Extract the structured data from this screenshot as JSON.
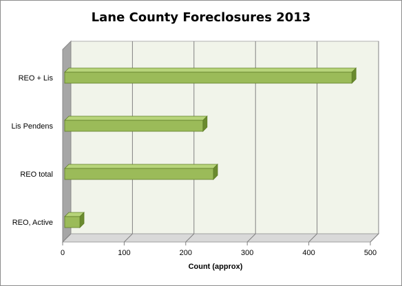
{
  "chart_data": {
    "type": "bar",
    "orientation": "horizontal",
    "title": "Lane County Foreclosures 2013",
    "xlabel": "Count (approx)",
    "ylabel": "",
    "categories": [
      "REO + Lis",
      "Lis Pendens",
      "REO total",
      "REO, Active"
    ],
    "values": [
      470,
      228,
      245,
      28
    ],
    "xlim": [
      0,
      500
    ],
    "xticks": [
      "0",
      "100",
      "200",
      "300",
      "400",
      "500"
    ],
    "grid": true,
    "legend": "none",
    "colors": {
      "bar_front": "#9bbb59",
      "bar_top": "#b7d47a",
      "bar_side": "#6a8a2f",
      "bar_edge": "#5f7d27",
      "plot_back": "#f1f4ea",
      "side_wall": "#a6a6a6",
      "floor": "#d9d9d9",
      "gridline": "#808080"
    }
  }
}
